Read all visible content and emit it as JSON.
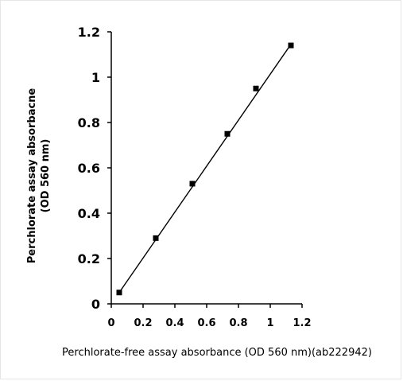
{
  "chart_data": {
    "type": "scatter",
    "title": "",
    "xlabel": "Perchlorate-free assay absorbance (OD 560 nm)(ab222942)",
    "ylabel_lines": [
      "Perchlorate assay absorbacne",
      "(OD 560 nm)"
    ],
    "xlim": [
      0,
      1.2
    ],
    "ylim": [
      0,
      1.2
    ],
    "xticks": [
      "0",
      "0.2",
      "0.4",
      "0.6",
      "0.8",
      "1",
      "1.2"
    ],
    "yticks": [
      "0",
      "0.2",
      "0.4",
      "0.6",
      "0.8",
      "1",
      "1.2"
    ],
    "grid": false,
    "legend": "none",
    "series": [
      {
        "x": [
          0.05,
          0.28,
          0.51,
          0.73,
          0.91,
          1.13
        ],
        "y": [
          0.05,
          0.29,
          0.53,
          0.75,
          0.95,
          1.14
        ],
        "marker": "square",
        "color": "#000000"
      }
    ],
    "trendline": {
      "x": [
        0.05,
        1.13
      ],
      "y": [
        0.05,
        1.145
      ],
      "color": "#000000"
    }
  }
}
